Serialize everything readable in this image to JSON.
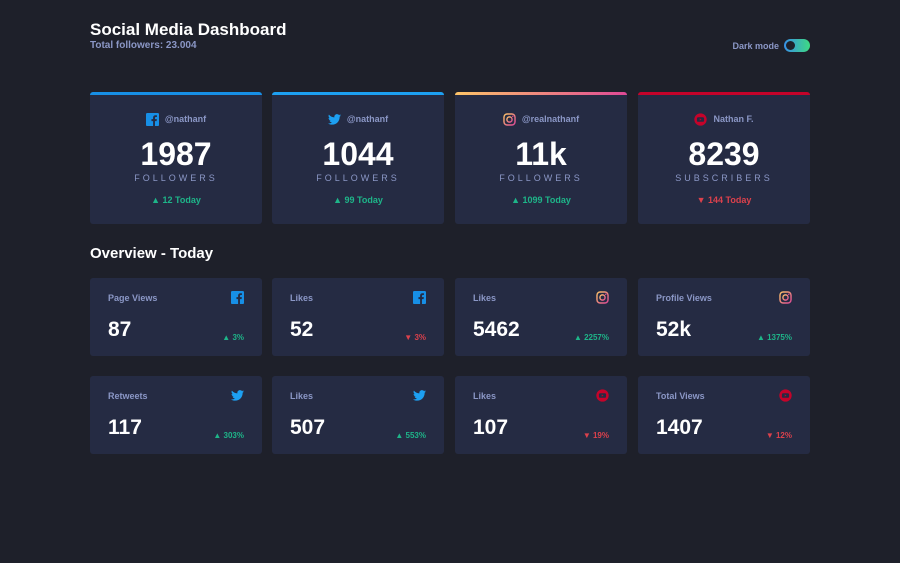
{
  "header": {
    "title": "Social Media Dashboard",
    "subtitle": "Total followers: 23.004",
    "dark_mode_label": "Dark mode"
  },
  "colors": {
    "facebook": "#178fe6",
    "twitter": "#1da0f2",
    "instagram_start": "#fdc468",
    "instagram_end": "#df4996",
    "youtube": "#c4032a",
    "up": "#1eb589",
    "down": "#dc414c"
  },
  "cards": [
    {
      "platform": "facebook",
      "icon": "facebook-icon",
      "handle": "@nathanf",
      "count": "1987",
      "unit": "FOLLOWERS",
      "trend": "up",
      "today": "12 Today"
    },
    {
      "platform": "twitter",
      "icon": "twitter-icon",
      "handle": "@nathanf",
      "count": "1044",
      "unit": "FOLLOWERS",
      "trend": "up",
      "today": "99 Today"
    },
    {
      "platform": "instagram",
      "icon": "instagram-icon",
      "handle": "@realnathanf",
      "count": "11k",
      "unit": "FOLLOWERS",
      "trend": "up",
      "today": "1099 Today"
    },
    {
      "platform": "youtube",
      "icon": "youtube-icon",
      "handle": "Nathan F.",
      "count": "8239",
      "unit": "SUBSCRIBERS",
      "trend": "down",
      "today": "144 Today"
    }
  ],
  "overview": {
    "title": "Overview - Today",
    "items": [
      {
        "label": "Page Views",
        "icon": "facebook-icon",
        "value": "87",
        "trend": "up",
        "percent": "3%"
      },
      {
        "label": "Likes",
        "icon": "facebook-icon",
        "value": "52",
        "trend": "down",
        "percent": "3%"
      },
      {
        "label": "Likes",
        "icon": "instagram-icon",
        "value": "5462",
        "trend": "up",
        "percent": "2257%"
      },
      {
        "label": "Profile Views",
        "icon": "instagram-icon",
        "value": "52k",
        "trend": "up",
        "percent": "1375%"
      },
      {
        "label": "Retweets",
        "icon": "twitter-icon",
        "value": "117",
        "trend": "up",
        "percent": "303%"
      },
      {
        "label": "Likes",
        "icon": "twitter-icon",
        "value": "507",
        "trend": "up",
        "percent": "553%"
      },
      {
        "label": "Likes",
        "icon": "youtube-icon",
        "value": "107",
        "trend": "down",
        "percent": "19%"
      },
      {
        "label": "Total Views",
        "icon": "youtube-icon",
        "value": "1407",
        "trend": "down",
        "percent": "12%"
      }
    ]
  }
}
